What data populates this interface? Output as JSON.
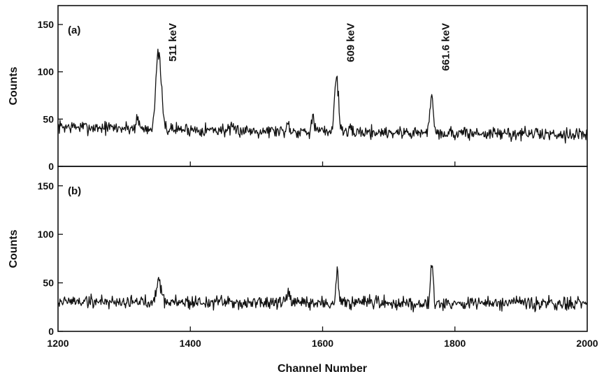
{
  "chart_data": [
    {
      "type": "line",
      "panel_label": "(a)",
      "xlabel": "",
      "ylabel": "Counts",
      "xlim": [
        1200,
        2000
      ],
      "ylim": [
        0,
        170
      ],
      "yticks": [
        0,
        50,
        100,
        150
      ],
      "xticks": [
        1400,
        1600,
        1800
      ],
      "baseline": [
        [
          1200,
          42
        ],
        [
          1400,
          39
        ],
        [
          1600,
          37
        ],
        [
          1800,
          35
        ],
        [
          2000,
          34
        ]
      ],
      "noise": 5,
      "peaks": [
        {
          "x": 1352,
          "height": 80,
          "width": 4
        },
        {
          "x": 1621,
          "height": 58,
          "width": 3
        },
        {
          "x": 1765,
          "height": 42,
          "width": 2.5
        },
        {
          "x": 1585,
          "height": 15,
          "width": 2
        },
        {
          "x": 1548,
          "height": 8,
          "width": 2
        },
        {
          "x": 1320,
          "height": 12,
          "width": 2
        }
      ],
      "annotations": [
        {
          "text": "511 keV",
          "x": 1352
        },
        {
          "text": "609 keV",
          "x": 1621
        },
        {
          "text": "661.6 keV",
          "x": 1765
        }
      ]
    },
    {
      "type": "line",
      "panel_label": "(b)",
      "xlabel": "Channel Number",
      "ylabel": "Counts",
      "xlim": [
        1200,
        2000
      ],
      "ylim": [
        0,
        170
      ],
      "yticks": [
        0,
        50,
        100,
        150
      ],
      "xticks": [
        1200,
        1400,
        1600,
        1800,
        2000
      ],
      "baseline": [
        [
          1200,
          31
        ],
        [
          1400,
          30
        ],
        [
          1600,
          29
        ],
        [
          1800,
          29
        ],
        [
          2000,
          28
        ]
      ],
      "noise": 5,
      "peaks": [
        {
          "x": 1352,
          "height": 22,
          "width": 4
        },
        {
          "x": 1622,
          "height": 40,
          "width": 1.5
        },
        {
          "x": 1765,
          "height": 45,
          "width": 2
        },
        {
          "x": 1548,
          "height": 10,
          "width": 2
        }
      ],
      "annotations": []
    }
  ]
}
